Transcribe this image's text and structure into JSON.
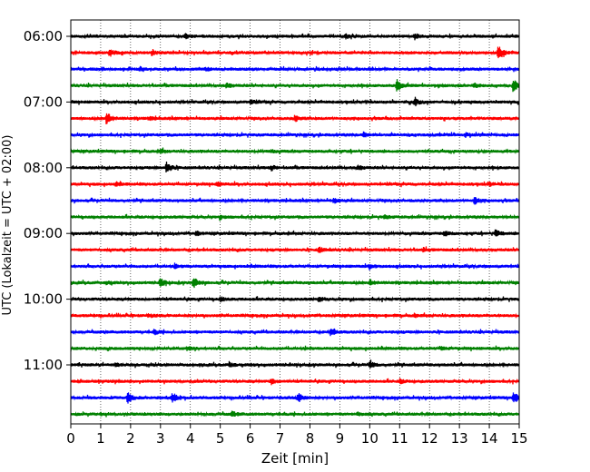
{
  "chart_data": {
    "type": "line",
    "xlabel": "Zeit  [min]",
    "ylabel": "UTC (Lokalzeit = UTC + 02:00)",
    "xlim": [
      0,
      15
    ],
    "x_ticks": [
      0,
      1,
      2,
      3,
      4,
      5,
      6,
      7,
      8,
      9,
      10,
      11,
      12,
      13,
      14,
      15
    ],
    "y_tick_labels": [
      "06:00",
      "07:00",
      "08:00",
      "09:00",
      "10:00",
      "11:00"
    ],
    "trace_minutes": 15,
    "grid": {
      "x": "dotted",
      "y": "none"
    },
    "trace_colors": [
      "#000000",
      "#ff0000",
      "#0000ff",
      "#008000"
    ],
    "traces": [
      {
        "start": "06:00",
        "events": [
          [
            11.5,
            0.35
          ],
          [
            3.8,
            0.3
          ],
          [
            9.2,
            0.25
          ]
        ]
      },
      {
        "start": "06:15",
        "events": [
          [
            14.3,
            1.0
          ],
          [
            1.3,
            0.4
          ],
          [
            2.7,
            0.25
          ]
        ]
      },
      {
        "start": "06:30",
        "events": [
          [
            2.3,
            0.25
          ],
          [
            4.5,
            0.2
          ]
        ]
      },
      {
        "start": "06:45",
        "events": [
          [
            10.9,
            0.75
          ],
          [
            14.8,
            0.8
          ],
          [
            5.2,
            0.3
          ],
          [
            13.5,
            0.25
          ]
        ]
      },
      {
        "start": "07:00",
        "events": [
          [
            11.5,
            0.5
          ],
          [
            6.0,
            0.3
          ]
        ]
      },
      {
        "start": "07:15",
        "events": [
          [
            1.2,
            0.9
          ],
          [
            7.5,
            0.35
          ],
          [
            2.6,
            0.2
          ]
        ]
      },
      {
        "start": "07:30",
        "events": [
          [
            9.8,
            0.3
          ],
          [
            13.2,
            0.2
          ]
        ]
      },
      {
        "start": "07:45",
        "events": [
          [
            3.0,
            0.2
          ],
          [
            6.7,
            0.2
          ]
        ]
      },
      {
        "start": "08:00",
        "events": [
          [
            3.2,
            0.7
          ],
          [
            6.7,
            0.3
          ],
          [
            9.6,
            0.25
          ]
        ]
      },
      {
        "start": "08:15",
        "events": [
          [
            1.5,
            0.2
          ],
          [
            4.9,
            0.2
          ],
          [
            14.0,
            0.2
          ]
        ]
      },
      {
        "start": "08:30",
        "events": [
          [
            13.5,
            0.45
          ],
          [
            8.8,
            0.25
          ]
        ]
      },
      {
        "start": "08:45",
        "events": [
          [
            5.0,
            0.2
          ],
          [
            10.5,
            0.2
          ]
        ]
      },
      {
        "start": "09:00",
        "events": [
          [
            14.2,
            0.45
          ],
          [
            12.5,
            0.3
          ],
          [
            4.2,
            0.25
          ]
        ]
      },
      {
        "start": "09:15",
        "events": [
          [
            8.3,
            0.3
          ],
          [
            11.8,
            0.2
          ]
        ]
      },
      {
        "start": "09:30",
        "events": [
          [
            10.0,
            0.25
          ],
          [
            3.5,
            0.2
          ]
        ]
      },
      {
        "start": "09:45",
        "events": [
          [
            3.0,
            0.5
          ],
          [
            4.1,
            0.65
          ],
          [
            10.0,
            0.4
          ],
          [
            1.2,
            0.2
          ]
        ]
      },
      {
        "start": "10:00",
        "events": [
          [
            5.0,
            0.25
          ],
          [
            8.3,
            0.25
          ]
        ]
      },
      {
        "start": "10:15",
        "events": [
          [
            2.6,
            0.25
          ],
          [
            11.5,
            0.2
          ]
        ]
      },
      {
        "start": "10:30",
        "events": [
          [
            8.7,
            0.45
          ],
          [
            2.8,
            0.25
          ]
        ]
      },
      {
        "start": "10:45",
        "events": [
          [
            3.9,
            0.2
          ],
          [
            12.4,
            0.2
          ]
        ]
      },
      {
        "start": "11:00",
        "events": [
          [
            10.0,
            0.4
          ],
          [
            5.3,
            0.3
          ],
          [
            1.5,
            0.2
          ]
        ]
      },
      {
        "start": "11:15",
        "events": [
          [
            6.7,
            0.35
          ],
          [
            11.0,
            0.25
          ]
        ]
      },
      {
        "start": "11:30",
        "events": [
          [
            1.9,
            0.75
          ],
          [
            3.4,
            0.65
          ],
          [
            7.6,
            0.55
          ],
          [
            14.8,
            0.7
          ]
        ]
      },
      {
        "start": "11:45",
        "events": [
          [
            5.4,
            0.3
          ],
          [
            9.6,
            0.2
          ]
        ]
      }
    ]
  }
}
